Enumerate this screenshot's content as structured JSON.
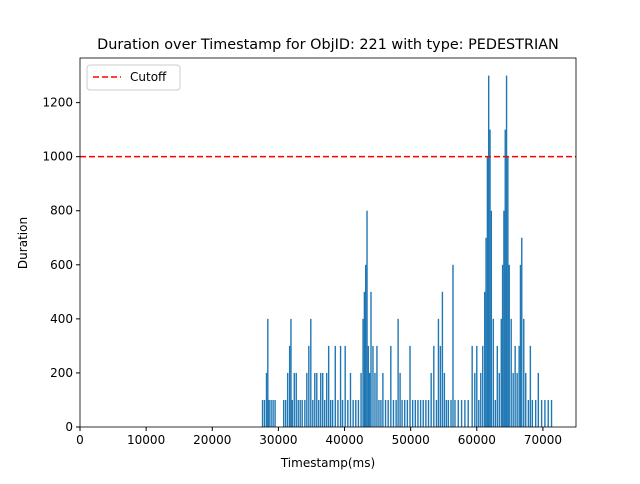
{
  "chart_data": {
    "type": "bar",
    "title": "Duration over Timestamp for ObjID: 221 with type: PEDESTRIAN",
    "x_label": "Timestamp(ms)",
    "y_label": "Duration",
    "x": [
      27600,
      27900,
      28200,
      28400,
      28600,
      28900,
      29200,
      29500,
      30800,
      31100,
      31400,
      31700,
      31900,
      32100,
      32400,
      32700,
      33000,
      33300,
      33600,
      34000,
      34300,
      34600,
      34900,
      35200,
      35500,
      35800,
      36100,
      36400,
      36700,
      37000,
      37300,
      37600,
      37900,
      38200,
      38600,
      39000,
      39400,
      39700,
      40100,
      40500,
      40900,
      41300,
      41700,
      42100,
      42500,
      42800,
      43000,
      43200,
      43400,
      43600,
      43800,
      44000,
      44300,
      44600,
      44900,
      45200,
      45500,
      45800,
      46200,
      46600,
      47000,
      47400,
      47800,
      48100,
      48400,
      48700,
      49100,
      49500,
      49900,
      50300,
      50700,
      51100,
      51500,
      51900,
      52300,
      52700,
      53100,
      53500,
      53900,
      54200,
      54500,
      54800,
      55100,
      55400,
      55700,
      56100,
      56400,
      56700,
      57200,
      57700,
      58200,
      58700,
      59300,
      59700,
      60000,
      60300,
      60600,
      60900,
      61200,
      61400,
      61600,
      61800,
      62000,
      62200,
      62500,
      62800,
      63100,
      63400,
      63700,
      63900,
      64100,
      64300,
      64500,
      64700,
      64900,
      65200,
      65500,
      65800,
      66100,
      66400,
      66600,
      66800,
      67100,
      67400,
      67800,
      68100,
      68400,
      68900,
      69300,
      69800,
      70300,
      70800,
      71300
    ],
    "values": [
      100,
      100,
      200,
      400,
      100,
      100,
      100,
      100,
      100,
      100,
      200,
      300,
      400,
      100,
      200,
      200,
      100,
      100,
      100,
      100,
      200,
      300,
      400,
      100,
      200,
      200,
      100,
      200,
      200,
      100,
      200,
      300,
      100,
      100,
      300,
      100,
      300,
      100,
      300,
      100,
      200,
      100,
      100,
      100,
      200,
      400,
      500,
      600,
      800,
      300,
      200,
      500,
      300,
      200,
      300,
      100,
      100,
      200,
      100,
      100,
      300,
      100,
      100,
      400,
      200,
      100,
      100,
      100,
      300,
      100,
      100,
      100,
      100,
      100,
      100,
      100,
      200,
      300,
      100,
      400,
      300,
      500,
      200,
      100,
      100,
      100,
      600,
      100,
      100,
      100,
      100,
      100,
      300,
      200,
      300,
      100,
      200,
      300,
      500,
      700,
      1000,
      1300,
      1100,
      800,
      400,
      100,
      300,
      200,
      400,
      600,
      800,
      1100,
      1300,
      1000,
      600,
      400,
      200,
      300,
      200,
      300,
      600,
      700,
      400,
      200,
      100,
      300,
      100,
      100,
      200,
      100,
      100,
      100,
      100
    ],
    "color": "#1f77b4",
    "hline": {
      "name": "Cutoff",
      "value": 1000,
      "color": "#ff0000"
    },
    "xlim": [
      0,
      75000
    ],
    "xticks": [
      0,
      10000,
      20000,
      30000,
      40000,
      50000,
      60000,
      70000
    ],
    "ylim": [
      0,
      1365
    ],
    "yticks": [
      0,
      200,
      400,
      600,
      800,
      1000,
      1200
    ],
    "legend": "upper left"
  }
}
